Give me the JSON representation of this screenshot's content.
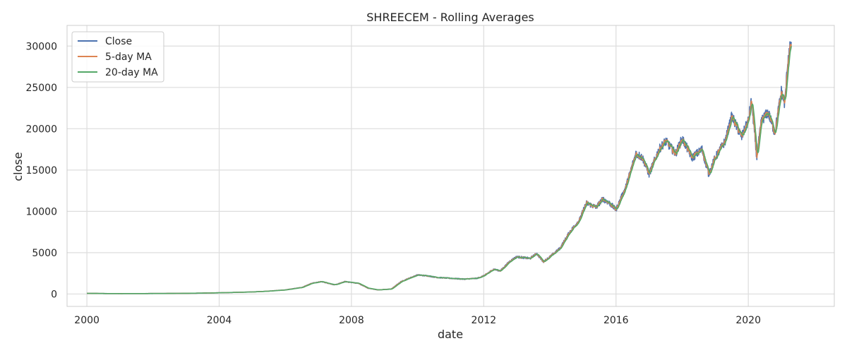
{
  "chart_data": {
    "type": "line",
    "title": "SHREECEM - Rolling Averages",
    "xlabel": "date",
    "ylabel": "close",
    "xlim": [
      1999.4,
      2022.6
    ],
    "ylim": [
      -1500,
      32500
    ],
    "x_ticks": [
      2000,
      2004,
      2008,
      2012,
      2016,
      2020
    ],
    "x_tick_labels": [
      "2000",
      "2004",
      "2008",
      "2012",
      "2016",
      "2020"
    ],
    "y_ticks": [
      0,
      5000,
      10000,
      15000,
      20000,
      25000,
      30000
    ],
    "y_tick_labels": [
      "0",
      "5000",
      "10000",
      "15000",
      "20000",
      "25000",
      "30000"
    ],
    "grid": true,
    "legend_position": "top-left",
    "series": [
      {
        "name": "Close",
        "color": "#4c72b0"
      },
      {
        "name": "5-day MA",
        "color": "#dd8452"
      },
      {
        "name": "20-day MA",
        "color": "#55a868"
      }
    ],
    "x": [
      2000.0,
      2000.5,
      2001.0,
      2001.5,
      2002.0,
      2002.5,
      2003.0,
      2003.5,
      2004.0,
      2004.5,
      2005.0,
      2005.5,
      2006.0,
      2006.5,
      2006.8,
      2007.1,
      2007.5,
      2007.8,
      2008.2,
      2008.5,
      2008.8,
      2009.2,
      2009.5,
      2009.8,
      2010.0,
      2010.3,
      2010.6,
      2011.0,
      2011.4,
      2011.8,
      2012.0,
      2012.3,
      2012.5,
      2012.8,
      2013.0,
      2013.4,
      2013.6,
      2013.8,
      2014.0,
      2014.3,
      2014.6,
      2014.9,
      2015.1,
      2015.4,
      2015.6,
      2015.8,
      2016.0,
      2016.3,
      2016.6,
      2016.8,
      2017.0,
      2017.3,
      2017.5,
      2017.8,
      2018.0,
      2018.3,
      2018.6,
      2018.8,
      2019.0,
      2019.3,
      2019.5,
      2019.8,
      2020.0,
      2020.1,
      2020.25,
      2020.4,
      2020.6,
      2020.8,
      2021.0,
      2021.1,
      2021.2,
      2021.3
    ],
    "close_values": [
      80,
      60,
      50,
      55,
      60,
      70,
      90,
      110,
      150,
      200,
      250,
      350,
      500,
      800,
      1300,
      1500,
      1100,
      1500,
      1300,
      700,
      500,
      600,
      1500,
      2000,
      2300,
      2200,
      2000,
      1900,
      1800,
      1900,
      2200,
      3000,
      2800,
      4000,
      4500,
      4300,
      4900,
      3900,
      4500,
      5500,
      7500,
      9000,
      11000,
      10500,
      11500,
      11000,
      10200,
      13000,
      17000,
      16500,
      14500,
      17500,
      18500,
      17000,
      18800,
      16500,
      17500,
      14500,
      16500,
      18500,
      21500,
      19000,
      21000,
      23500,
      16500,
      21000,
      22000,
      19500,
      24500,
      23000,
      28500,
      30500
    ]
  }
}
